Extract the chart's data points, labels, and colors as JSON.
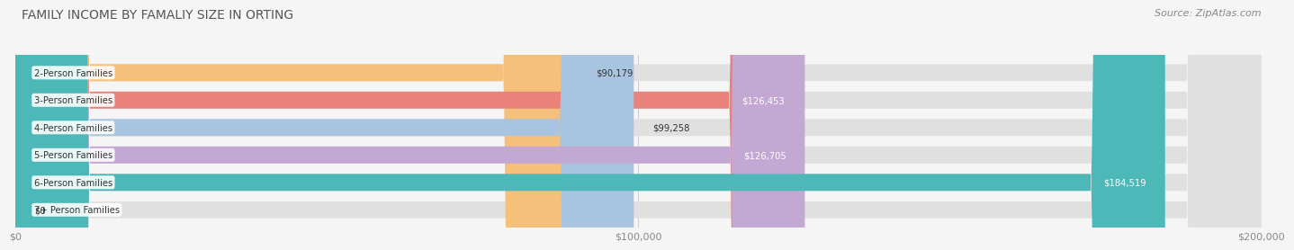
{
  "title": "FAMILY INCOME BY FAMALIY SIZE IN ORTING",
  "source": "Source: ZipAtlas.com",
  "categories": [
    "2-Person Families",
    "3-Person Families",
    "4-Person Families",
    "5-Person Families",
    "6-Person Families",
    "7+ Person Families"
  ],
  "values": [
    90179,
    126453,
    99258,
    126705,
    184519,
    0
  ],
  "bar_colors": [
    "#f5c07a",
    "#e8827a",
    "#a8c4e0",
    "#c4a8d4",
    "#4db8b8",
    "#c8d0e8"
  ],
  "label_colors": [
    "#333333",
    "#ffffff",
    "#333333",
    "#ffffff",
    "#ffffff",
    "#333333"
  ],
  "xlim": [
    0,
    200000
  ],
  "xticks": [
    0,
    100000,
    200000
  ],
  "xtick_labels": [
    "$0",
    "$100,000",
    "$200,000"
  ],
  "title_fontsize": 10,
  "source_fontsize": 8,
  "bar_height": 0.62,
  "background_color": "#f5f5f5",
  "bar_bg_color": "#e0e0e0",
  "value_labels": [
    "$90,179",
    "$126,453",
    "$99,258",
    "$126,705",
    "$184,519",
    "$0"
  ]
}
